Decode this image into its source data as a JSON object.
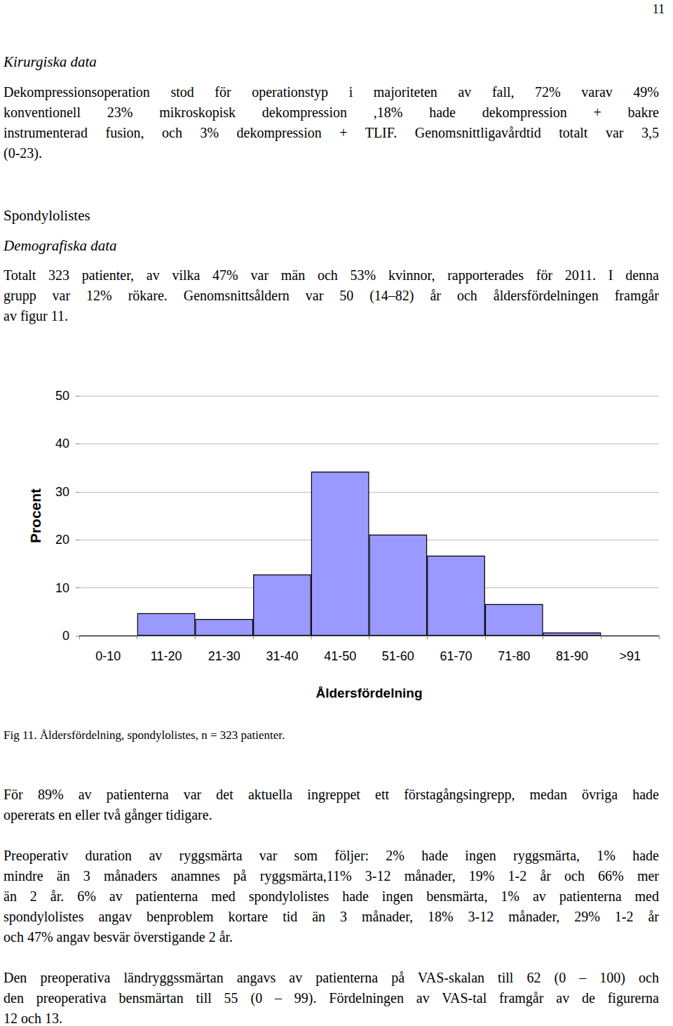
{
  "page_number": "11",
  "sections": [
    {
      "subheading": "Kirurgiska data",
      "paragraphs": [
        [
          "Dekompressionsoperation stod för operationstyp i majoriteten av fall, 72% varav 49%",
          "konventionell 23% mikroskopisk dekompression ,18% hade dekompression + bakre",
          "instrumenterad fusion, och 3% dekompression + TLIF. Genomsnittligavårdtid totalt var 3,5",
          "(0-23)."
        ]
      ]
    },
    {
      "heading": "Spondylolistes",
      "subheading": "Demografiska data",
      "paragraphs": [
        [
          "Totalt 323 patienter, av vilka 47% var män och 53% kvinnor, rapporterades för 2011. I denna",
          "grupp var 12% rökare. Genomsnittsåldern var 50 (14–82) år och åldersfördelningen framgår",
          "av figur 11."
        ]
      ]
    }
  ],
  "chart_data": {
    "type": "bar",
    "categories": [
      "0-10",
      "11-20",
      "21-30",
      "31-40",
      "41-50",
      "51-60",
      "61-70",
      "71-80",
      "81-90",
      ">91"
    ],
    "values": [
      0,
      4.7,
      3.5,
      12.8,
      34.2,
      21.1,
      16.7,
      6.6,
      0.7,
      0
    ],
    "color": "#9999ff",
    "xlabel": "Åldersfördelning",
    "ylabel": "Procent",
    "ylim": [
      0,
      50
    ],
    "yticks": [
      0,
      10,
      20,
      30,
      40,
      50
    ],
    "grid": true
  },
  "caption": "Fig 11. Åldersfördelning, spondylolistes, n = 323 patienter.",
  "after_paragraphs": [
    [
      "För 89% av patienterna var det aktuella ingreppet ett förstagångsingrepp, medan övriga hade",
      "opererats en eller två gånger tidigare."
    ],
    [
      "Preoperativ duration av ryggsmärta var som följer: 2% hade ingen ryggsmärta, 1% hade",
      "mindre än 3 månaders anamnes på ryggsmärta,11% 3-12 månader, 19% 1-2 år och 66% mer",
      "än 2 år. 6% av patienterna med spondylolistes hade ingen bensmärta, 1% av patienterna med",
      "spondylolistes angav benproblem kortare tid än 3 månader, 18% 3-12 månader, 29% 1-2 år",
      "och 47% angav besvär överstigande 2 år."
    ],
    [
      "Den preoperativa ländryggssmärtan angavs av patienterna på VAS-skalan till 62 (0 – 100) och",
      "den preoperativa bensmärtan till 55 (0 – 99). Fördelningen av VAS-tal framgår av de figurerna",
      "12 och 13."
    ]
  ]
}
